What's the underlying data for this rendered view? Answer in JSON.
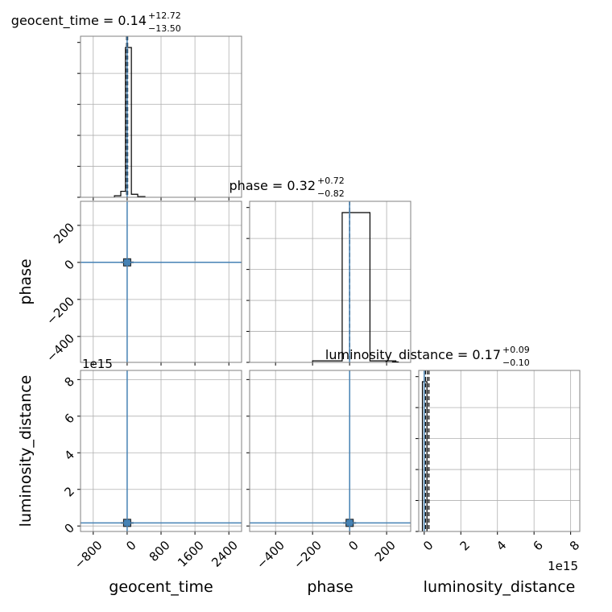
{
  "chart_data": {
    "type": "corner",
    "parameters": [
      "geocent_time",
      "phase",
      "luminosity_distance"
    ],
    "titles": [
      {
        "param": "geocent_time",
        "text": "geocent_time = 0.14",
        "sup": "+12.72",
        "sub": "−13.50"
      },
      {
        "param": "phase",
        "text": "phase = 0.32",
        "sup": "+0.72",
        "sub": "−0.82"
      },
      {
        "param": "luminosity_distance",
        "text": "luminosity_distance = 0.17",
        "sup": "+0.09",
        "sub": "−0.10"
      }
    ],
    "axes": {
      "geocent_time": {
        "range": [
          -1100,
          2700
        ],
        "ticks": [
          -800,
          0,
          800,
          1600,
          2400
        ],
        "tick_labels": [
          "−800",
          "0",
          "800",
          "1600",
          "2400"
        ]
      },
      "phase": {
        "range": [
          -540,
          330
        ],
        "ticks": [
          -400,
          -200,
          0,
          200
        ],
        "tick_labels": [
          "−400",
          "−200",
          "0",
          "200"
        ]
      },
      "luminosity_distance": {
        "range": [
          -0.3,
          8.5
        ],
        "ticks": [
          0,
          2,
          4,
          6,
          8
        ],
        "tick_labels": [
          "0",
          "2",
          "4",
          "6",
          "8"
        ],
        "offset_text": "1e15",
        "unit_scale": 1000000000000000.0
      }
    },
    "histograms": [
      {
        "param": "geocent_time",
        "bins": [
          [
            -300,
            -150,
            0.01
          ],
          [
            -150,
            -40,
            0.04
          ],
          [
            -40,
            100,
            1.0
          ],
          [
            100,
            250,
            0.02
          ],
          [
            250,
            420,
            0.005
          ]
        ],
        "median": 0.14,
        "ci": [
          -13.36,
          12.86
        ]
      },
      {
        "param": "phase",
        "bins": [
          [
            -200,
            -40,
            0.01
          ],
          [
            -40,
            110,
            1.0
          ],
          [
            110,
            250,
            0.01
          ]
        ],
        "median": 0.32,
        "ci": [
          -0.5,
          1.04
        ]
      },
      {
        "param": "luminosity_distance",
        "bins": [
          [
            -0.1,
            0.15,
            1.0
          ]
        ],
        "median": 0.17,
        "ci": [
          0.07,
          0.26
        ]
      }
    ],
    "scatter_panels": [
      {
        "x": "geocent_time",
        "y": "phase",
        "center": [
          0.14,
          0.32
        ]
      },
      {
        "x": "geocent_time",
        "y": "luminosity_distance",
        "center": [
          0.14,
          0.17
        ]
      },
      {
        "x": "phase",
        "y": "luminosity_distance",
        "center": [
          0.32,
          0.17
        ]
      }
    ],
    "injection_color": "#4682b4",
    "grid": true
  }
}
